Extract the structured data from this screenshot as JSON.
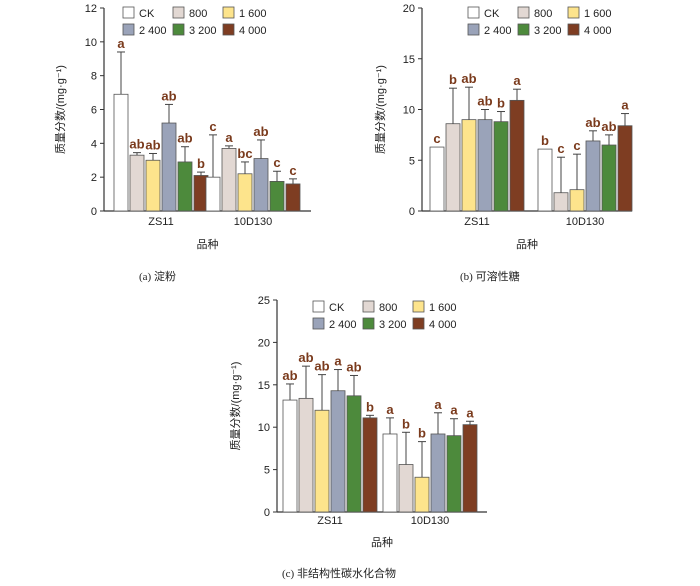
{
  "captions": {
    "a": "(a)  淀粉",
    "b": "(b)  可溶性糖",
    "c": "(c)  非结构性碳水化合物"
  },
  "legend_labels": [
    "CK",
    "800",
    "1 600",
    "2 400",
    "3 200",
    "4 000"
  ],
  "colors": {
    "series": [
      "#ffffff",
      "#e2d8d3",
      "#fde48c",
      "#9aa3b9",
      "#4d8a3c",
      "#7e3d22"
    ],
    "sig_letters": "#7a3a1c",
    "axis": "#333333",
    "text": "#222222"
  },
  "chart_data": [
    {
      "id": "a",
      "type": "bar",
      "title": "",
      "xlabel": "品种",
      "ylabel": "质量分数/(mg·g⁻¹)",
      "categories": [
        "ZS11",
        "10D130"
      ],
      "ylim": [
        0,
        12
      ],
      "yticks": [
        0,
        2,
        4,
        6,
        8,
        10,
        12
      ],
      "series": [
        {
          "name": "CK",
          "values": [
            6.9,
            2.0
          ],
          "errors": [
            2.5,
            2.5
          ],
          "letters": [
            "a",
            "c"
          ]
        },
        {
          "name": "800",
          "values": [
            3.3,
            3.7
          ],
          "errors": [
            0.15,
            0.15
          ],
          "letters": [
            "ab",
            "a"
          ]
        },
        {
          "name": "1 600",
          "values": [
            3.0,
            2.2
          ],
          "errors": [
            0.4,
            0.7
          ],
          "letters": [
            "ab",
            "bc"
          ]
        },
        {
          "name": "2 400",
          "values": [
            5.2,
            3.1
          ],
          "errors": [
            1.1,
            1.1
          ],
          "letters": [
            "ab",
            "ab"
          ]
        },
        {
          "name": "3 200",
          "values": [
            2.9,
            1.75
          ],
          "errors": [
            0.9,
            0.6
          ],
          "letters": [
            "ab",
            "c"
          ]
        },
        {
          "name": "4 000",
          "values": [
            2.1,
            1.6
          ],
          "errors": [
            0.2,
            0.3
          ],
          "letters": [
            "b",
            "c"
          ]
        }
      ]
    },
    {
      "id": "b",
      "type": "bar",
      "title": "",
      "xlabel": "品种",
      "ylabel": "质量分数/(mg·g⁻¹)",
      "categories": [
        "ZS11",
        "10D130"
      ],
      "ylim": [
        0,
        20
      ],
      "yticks": [
        0,
        5,
        10,
        15,
        20
      ],
      "series": [
        {
          "name": "CK",
          "values": [
            6.3,
            6.1
          ],
          "errors": [
            0,
            0
          ],
          "letters": [
            "c",
            "b"
          ]
        },
        {
          "name": "800",
          "values": [
            8.6,
            1.8
          ],
          "errors": [
            3.5,
            3.5
          ],
          "letters": [
            "b",
            "c"
          ]
        },
        {
          "name": "1 600",
          "values": [
            9.0,
            2.1
          ],
          "errors": [
            3.2,
            3.5
          ],
          "letters": [
            "ab",
            "c"
          ]
        },
        {
          "name": "2 400",
          "values": [
            9.0,
            6.9
          ],
          "errors": [
            1.0,
            1.0
          ],
          "letters": [
            "ab",
            "ab"
          ]
        },
        {
          "name": "3 200",
          "values": [
            8.8,
            6.5
          ],
          "errors": [
            1.0,
            1.0
          ],
          "letters": [
            "b",
            "ab"
          ]
        },
        {
          "name": "4 000",
          "values": [
            10.9,
            8.4
          ],
          "errors": [
            1.1,
            1.2
          ],
          "letters": [
            "a",
            "a"
          ]
        }
      ]
    },
    {
      "id": "c",
      "type": "bar",
      "title": "",
      "xlabel": "品种",
      "ylabel": "质量分数/(mg·g⁻¹)",
      "categories": [
        "ZS11",
        "10D130"
      ],
      "ylim": [
        0,
        25
      ],
      "yticks": [
        0,
        5,
        10,
        15,
        20,
        25
      ],
      "series": [
        {
          "name": "CK",
          "values": [
            13.2,
            9.2
          ],
          "errors": [
            1.9,
            1.9
          ],
          "letters": [
            "ab",
            "a"
          ]
        },
        {
          "name": "800",
          "values": [
            13.4,
            5.6
          ],
          "errors": [
            3.8,
            3.8
          ],
          "letters": [
            "ab",
            "b"
          ]
        },
        {
          "name": "1 600",
          "values": [
            12.0,
            4.1
          ],
          "errors": [
            4.2,
            4.2
          ],
          "letters": [
            "ab",
            "b"
          ]
        },
        {
          "name": "2 400",
          "values": [
            14.3,
            9.2
          ],
          "errors": [
            2.5,
            2.5
          ],
          "letters": [
            "a",
            "a"
          ]
        },
        {
          "name": "3 200",
          "values": [
            13.7,
            9.0
          ],
          "errors": [
            2.4,
            2.0
          ],
          "letters": [
            "ab",
            "a"
          ]
        },
        {
          "name": "4 000",
          "values": [
            11.1,
            10.3
          ],
          "errors": [
            0.3,
            0.4
          ],
          "letters": [
            "b",
            "a"
          ]
        }
      ]
    }
  ]
}
